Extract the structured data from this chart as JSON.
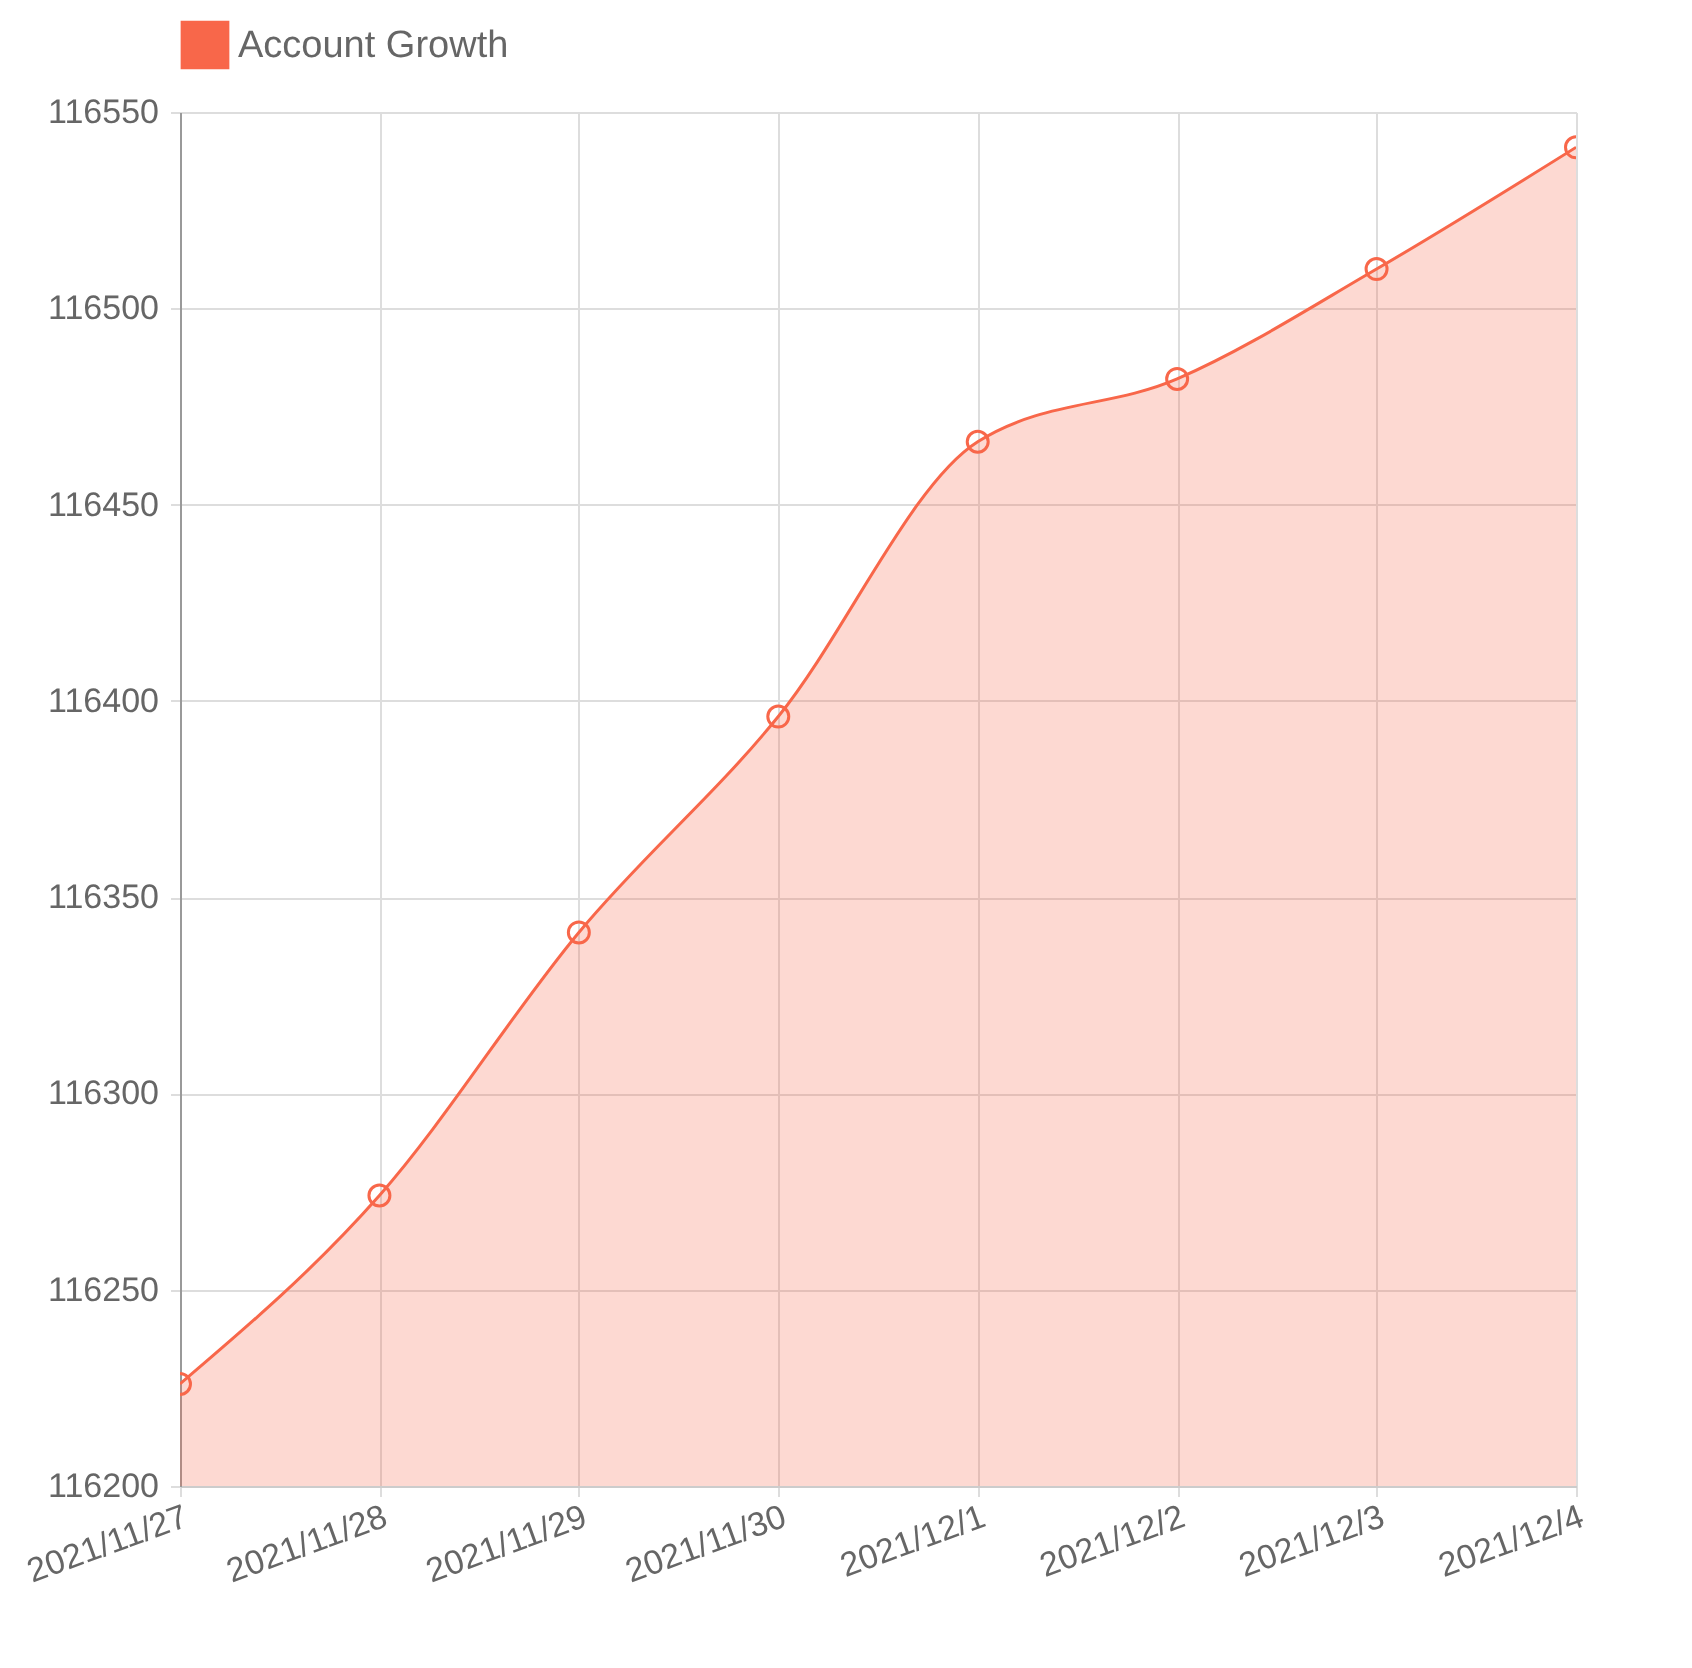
{
  "chart_data": {
    "type": "area",
    "categories": [
      "2021/11/27",
      "2021/11/28",
      "2021/11/29",
      "2021/11/30",
      "2021/12/1",
      "2021/12/2",
      "2021/12/3",
      "2021/12/4"
    ],
    "series": [
      {
        "name": "Account Growth",
        "color": "#f8674a",
        "values": [
          116226,
          116274,
          116341,
          116396,
          116466,
          116482,
          116510,
          116541
        ]
      }
    ],
    "ylim": [
      116200,
      116550
    ],
    "yticks": [
      116200,
      116250,
      116300,
      116350,
      116400,
      116450,
      116500,
      116550
    ],
    "grid": true,
    "legend": "top",
    "marker": "circle",
    "line_style": "solid"
  }
}
